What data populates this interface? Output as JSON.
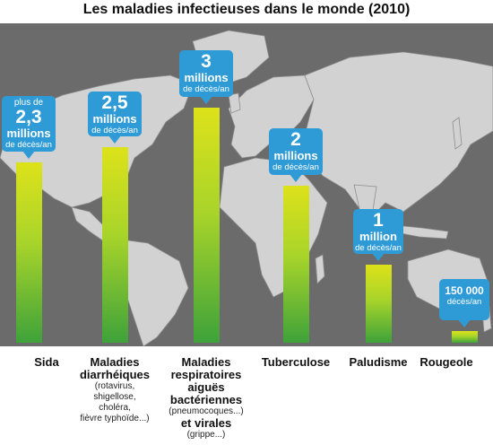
{
  "title": "Les maladies infectieuses dans le monde (2010)",
  "colors": {
    "background": "#6b6b6b",
    "map": "#d2d2d2",
    "callout": "#2f9bd6",
    "bar_top": "#dde21a",
    "bar_bottom": "#3ea23a"
  },
  "chart_data": {
    "type": "bar",
    "unit": "décès/an",
    "ylim": [
      0,
      3200000
    ],
    "categories": [
      "Sida",
      "Maladies diarrhéiques (rotavirus, shigellose, choléra, fièvre typhoïde...)",
      "Maladies respiratoires aiguës bactériennes (pneumocoques...) et virales (grippe...)",
      "Tuberculose",
      "Paludisme",
      "Rougeole"
    ],
    "values": [
      2300000,
      2500000,
      3000000,
      2000000,
      1000000,
      150000
    ],
    "bars": [
      {
        "name": "Sida",
        "sub": [],
        "value": 2300000,
        "label_pre": "plus de",
        "label_big": "2,3",
        "label_mid": "millions",
        "label_unit": "de décès/an"
      },
      {
        "name": "Maladies diarrhéiques",
        "sub": [
          "(rotavirus,",
          "shigellose,",
          "choléra,",
          "fièvre typhoïde...)"
        ],
        "value": 2500000,
        "label_pre": "",
        "label_big": "2,5",
        "label_mid": "millions",
        "label_unit": "de décès/an"
      },
      {
        "name": "Maladies respiratoires aiguës bactériennes",
        "sub": [
          "(pneumocoques...)"
        ],
        "name2": "et virales",
        "sub2": [
          "(grippe...)"
        ],
        "value": 3000000,
        "label_pre": "",
        "label_big": "3",
        "label_mid": "millions",
        "label_unit": "de décès/an"
      },
      {
        "name": "Tuberculose",
        "sub": [],
        "value": 2000000,
        "label_pre": "",
        "label_big": "2",
        "label_mid": "millions",
        "label_unit": "de décès/an"
      },
      {
        "name": "Paludisme",
        "sub": [],
        "value": 1000000,
        "label_pre": "",
        "label_big": "1",
        "label_mid": "million",
        "label_unit": "de décès/an"
      },
      {
        "name": "Rougeole",
        "sub": [],
        "value": 150000,
        "label_pre": "",
        "label_big": "150 000",
        "label_mid": "",
        "label_unit": "décès/an"
      }
    ]
  }
}
